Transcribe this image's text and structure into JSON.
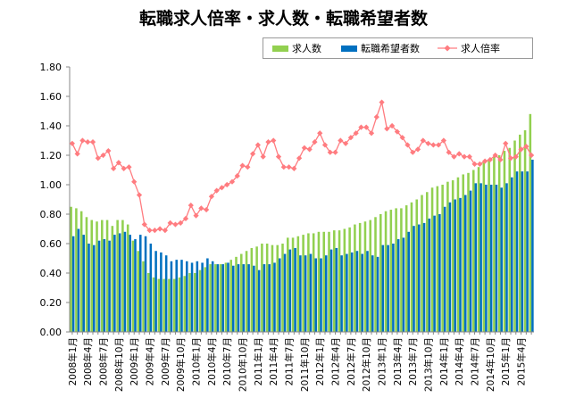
{
  "chart_data": {
    "type": "bar",
    "title": "転職求人倍率・求人数・転職希望者数",
    "xlabel": "",
    "ylabel": "",
    "ylim": [
      0,
      1.8
    ],
    "yticks": [
      "0.00",
      "0.20",
      "0.40",
      "0.60",
      "0.80",
      "1.00",
      "1.20",
      "1.40",
      "1.60",
      "1.80"
    ],
    "grid": false,
    "legend_position": "top-right",
    "x_label_every": 3,
    "categories": [
      "2008年1月",
      "2008年2月",
      "2008年3月",
      "2008年4月",
      "2008年5月",
      "2008年6月",
      "2008年7月",
      "2008年8月",
      "2008年9月",
      "2008年10月",
      "2008年11月",
      "2008年12月",
      "2009年1月",
      "2009年2月",
      "2009年3月",
      "2009年4月",
      "2009年5月",
      "2009年6月",
      "2009年7月",
      "2009年8月",
      "2009年9月",
      "2009年10月",
      "2009年11月",
      "2009年12月",
      "2010年1月",
      "2010年2月",
      "2010年3月",
      "2010年4月",
      "2010年5月",
      "2010年6月",
      "2010年7月",
      "2010年8月",
      "2010年9月",
      "2010年10月",
      "2010年11月",
      "2010年12月",
      "2011年1月",
      "2011年2月",
      "2011年3月",
      "2011年4月",
      "2011年5月",
      "2011年6月",
      "2011年7月",
      "2011年8月",
      "2011年9月",
      "2011年10月",
      "2011年11月",
      "2011年12月",
      "2012年1月",
      "2012年2月",
      "2012年3月",
      "2012年4月",
      "2012年5月",
      "2012年6月",
      "2012年7月",
      "2012年8月",
      "2012年9月",
      "2012年10月",
      "2012年11月",
      "2012年12月",
      "2013年1月",
      "2013年2月",
      "2013年3月",
      "2013年4月",
      "2013年5月",
      "2013年6月",
      "2013年7月",
      "2013年8月",
      "2013年9月",
      "2013年10月",
      "2013年11月",
      "2013年12月",
      "2014年1月",
      "2014年2月",
      "2014年3月",
      "2014年4月",
      "2014年5月",
      "2014年6月",
      "2014年7月",
      "2014年8月",
      "2014年9月",
      "2014年10月",
      "2014年11月",
      "2014年12月",
      "2015年1月",
      "2015年2月",
      "2015年3月",
      "2015年4月",
      "2015年5月",
      "2015年6月"
    ],
    "series": [
      {
        "name": "求人数",
        "type": "bar",
        "color": "#92d050",
        "values": [
          0.85,
          0.84,
          0.82,
          0.78,
          0.76,
          0.75,
          0.76,
          0.76,
          0.72,
          0.76,
          0.76,
          0.73,
          0.62,
          0.55,
          0.48,
          0.4,
          0.37,
          0.36,
          0.36,
          0.36,
          0.36,
          0.37,
          0.38,
          0.4,
          0.4,
          0.42,
          0.44,
          0.46,
          0.46,
          0.46,
          0.47,
          0.49,
          0.51,
          0.53,
          0.55,
          0.57,
          0.58,
          0.6,
          0.6,
          0.59,
          0.59,
          0.6,
          0.64,
          0.64,
          0.65,
          0.66,
          0.67,
          0.67,
          0.68,
          0.68,
          0.68,
          0.69,
          0.69,
          0.7,
          0.71,
          0.73,
          0.74,
          0.75,
          0.76,
          0.78,
          0.8,
          0.82,
          0.83,
          0.84,
          0.84,
          0.86,
          0.88,
          0.9,
          0.93,
          0.95,
          0.98,
          0.99,
          1.0,
          1.02,
          1.03,
          1.05,
          1.07,
          1.08,
          1.1,
          1.12,
          1.15,
          1.17,
          1.19,
          1.2,
          1.23,
          1.25,
          1.3,
          1.34,
          1.37,
          1.48
        ]
      },
      {
        "name": "転職希望者数",
        "type": "bar",
        "color": "#0070c0",
        "values": [
          0.65,
          0.7,
          0.66,
          0.6,
          0.59,
          0.62,
          0.63,
          0.62,
          0.66,
          0.67,
          0.68,
          0.66,
          0.63,
          0.66,
          0.65,
          0.6,
          0.55,
          0.54,
          0.52,
          0.48,
          0.49,
          0.49,
          0.48,
          0.47,
          0.48,
          0.47,
          0.5,
          0.48,
          0.46,
          0.46,
          0.47,
          0.45,
          0.46,
          0.46,
          0.46,
          0.45,
          0.42,
          0.46,
          0.46,
          0.47,
          0.5,
          0.53,
          0.56,
          0.57,
          0.52,
          0.52,
          0.53,
          0.5,
          0.5,
          0.52,
          0.56,
          0.57,
          0.52,
          0.53,
          0.54,
          0.55,
          0.53,
          0.55,
          0.52,
          0.51,
          0.59,
          0.59,
          0.6,
          0.63,
          0.64,
          0.68,
          0.72,
          0.73,
          0.74,
          0.77,
          0.79,
          0.8,
          0.85,
          0.88,
          0.9,
          0.91,
          0.93,
          0.96,
          1.01,
          1.01,
          1.0,
          1.0,
          1.0,
          0.98,
          1.01,
          1.05,
          1.09,
          1.09,
          1.09,
          1.17
        ]
      },
      {
        "name": "求人倍率",
        "type": "line",
        "color": "#ff7c80",
        "values": [
          1.28,
          1.21,
          1.3,
          1.29,
          1.29,
          1.18,
          1.2,
          1.23,
          1.11,
          1.15,
          1.11,
          1.12,
          1.02,
          0.93,
          0.73,
          0.69,
          0.69,
          0.7,
          0.69,
          0.74,
          0.73,
          0.74,
          0.77,
          0.86,
          0.79,
          0.84,
          0.83,
          0.92,
          0.96,
          0.98,
          1.0,
          1.02,
          1.06,
          1.13,
          1.12,
          1.21,
          1.27,
          1.19,
          1.29,
          1.3,
          1.19,
          1.12,
          1.12,
          1.11,
          1.18,
          1.25,
          1.24,
          1.29,
          1.35,
          1.27,
          1.22,
          1.22,
          1.3,
          1.28,
          1.32,
          1.35,
          1.39,
          1.39,
          1.35,
          1.46,
          1.56,
          1.38,
          1.4,
          1.36,
          1.32,
          1.27,
          1.22,
          1.24,
          1.3,
          1.28,
          1.27,
          1.27,
          1.3,
          1.22,
          1.19,
          1.21,
          1.19,
          1.19,
          1.14,
          1.14,
          1.16,
          1.17,
          1.2,
          1.17,
          1.28,
          1.18,
          1.19,
          1.24,
          1.26,
          1.2
        ]
      }
    ]
  }
}
